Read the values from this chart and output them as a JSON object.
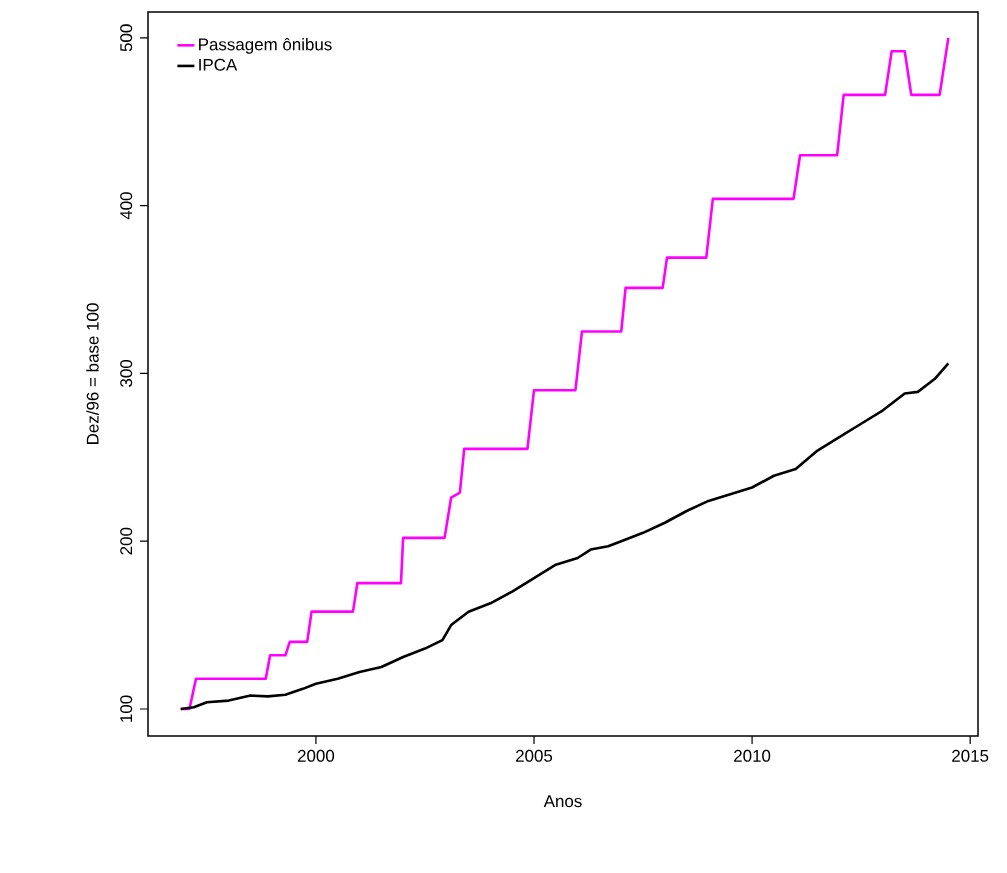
{
  "chart_data": {
    "type": "line",
    "xlabel": "Anos",
    "ylabel": "Dez/96 = base 100",
    "xlim": [
      1996.15,
      2015.18
    ],
    "ylim": [
      83.9,
      515.4
    ],
    "xticks": [
      2000,
      2005,
      2010,
      2015
    ],
    "yticks": [
      100,
      200,
      300,
      400,
      500
    ],
    "legend": "top left",
    "marker": "none",
    "line_style": "solid",
    "series": [
      {
        "name": "Passagem ônibus",
        "color": "#ff00ff",
        "x": [
          1996.9,
          1997.1,
          1997.25,
          1998.85,
          1998.95,
          1999.3,
          1999.4,
          1999.8,
          1999.9,
          2000.85,
          2000.95,
          2001.95,
          2002.0,
          2002.95,
          2003.1,
          2003.3,
          2003.4,
          2004.85,
          2005.0,
          2005.95,
          2006.1,
          2007.0,
          2007.1,
          2007.95,
          2008.05,
          2008.95,
          2009.1,
          2010.95,
          2011.1,
          2011.95,
          2012.1,
          2013.05,
          2013.2,
          2013.5,
          2013.65,
          2014.3,
          2014.5
        ],
        "values": [
          100,
          100,
          118,
          118,
          132,
          132,
          140,
          140,
          158,
          158,
          175,
          175,
          202,
          202,
          226,
          229,
          255,
          255,
          290,
          290,
          325,
          325,
          351,
          351,
          369,
          369,
          404,
          404,
          430,
          430,
          466,
          466,
          492,
          492,
          466,
          466,
          500
        ]
      },
      {
        "name": "IPCA",
        "color": "#000000",
        "x": [
          1996.9,
          1997.2,
          1997.5,
          1998.0,
          1998.5,
          1998.9,
          1999.3,
          1999.7,
          2000.0,
          2000.5,
          2001.0,
          2001.5,
          2002.0,
          2002.5,
          2002.9,
          2003.1,
          2003.5,
          2004.0,
          2004.5,
          2005.0,
          2005.5,
          2006.0,
          2006.3,
          2006.7,
          2007.0,
          2007.5,
          2008.0,
          2008.5,
          2009.0,
          2009.5,
          2010.0,
          2010.5,
          2011.0,
          2011.5,
          2012.0,
          2012.5,
          2013.0,
          2013.5,
          2013.8,
          2014.2,
          2014.5
        ],
        "values": [
          100,
          101,
          104,
          105,
          108,
          107.5,
          108.5,
          112,
          115,
          118,
          122,
          125,
          131,
          136,
          141,
          150,
          158,
          163,
          170,
          178,
          186,
          190,
          195,
          197,
          200,
          205,
          211,
          218,
          224,
          228,
          232,
          239,
          243,
          254,
          262,
          270,
          278,
          288,
          289,
          297,
          306
        ]
      }
    ]
  }
}
